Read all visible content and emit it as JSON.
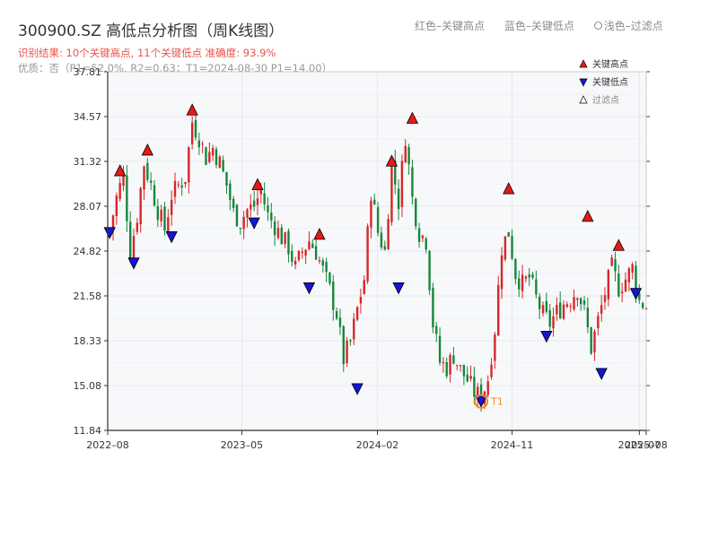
{
  "header": {
    "title": "300900.SZ 高低点分析图（周K线图）",
    "result_text": "识别结果: 10个关键高点, 11个关键低点  准确度: 93.9%",
    "quality_text": "优质：否（P1=52.0%, R2=0.63；T1=2024-08-30 P1=14.00）"
  },
  "top_legend": {
    "red": "红色–关键高点",
    "blue": "蓝色–关键低点",
    "light": "浅色–过滤点"
  },
  "colors": {
    "up": "#d62728",
    "down": "#17863a",
    "high_marker": "#e61919",
    "low_marker": "#1515d6",
    "t1_ring": "#f28a1e",
    "axis": "#333333",
    "grid": "#e5e8ee",
    "plot_bg": "#f7f8fa"
  },
  "chart_data": {
    "type": "candlestick",
    "title": "",
    "xlabel": "",
    "ylabel": "",
    "ylim": [
      11.84,
      37.81
    ],
    "y_ticks": [
      "11.84",
      "15.08",
      "18.33",
      "21.58",
      "24.82",
      "28.07",
      "31.32",
      "34.57",
      "37.81"
    ],
    "x_range": [
      "2022-08-01",
      "2025-08-01"
    ],
    "x_ticks": [
      {
        "date": "2022-08-01",
        "label": "2022–08"
      },
      {
        "date": "2023-05-01",
        "label": "2023–05"
      },
      {
        "date": "2024-02-01",
        "label": "2024–02"
      },
      {
        "date": "2024-11-01",
        "label": "2024–11"
      },
      {
        "date": "2025-07-18",
        "label": "2025–07"
      },
      {
        "date": "2025-08-01",
        "label": "2025–08"
      }
    ],
    "candle_anchors": [
      [
        "2022-08-05",
        26.3
      ],
      [
        "2022-08-19",
        28.7
      ],
      [
        "2022-09-02",
        30.3
      ],
      [
        "2022-09-16",
        24.7
      ],
      [
        "2022-09-30",
        27.4
      ],
      [
        "2022-10-14",
        31.2
      ],
      [
        "2022-10-28",
        29.6
      ],
      [
        "2022-11-11",
        27.8
      ],
      [
        "2022-11-25",
        26.4
      ],
      [
        "2022-12-09",
        28.9
      ],
      [
        "2023-01-06",
        30.2
      ],
      [
        "2023-01-20",
        34.2
      ],
      [
        "2023-02-03",
        33.1
      ],
      [
        "2023-02-17",
        31.6
      ],
      [
        "2023-03-03",
        32.3
      ],
      [
        "2023-03-17",
        31.2
      ],
      [
        "2023-03-31",
        29.6
      ],
      [
        "2023-04-14",
        27.6
      ],
      [
        "2023-04-28",
        27.0
      ],
      [
        "2023-05-12",
        27.8
      ],
      [
        "2023-05-26",
        28.1
      ],
      [
        "2023-06-09",
        29.2
      ],
      [
        "2023-06-23",
        27.4
      ],
      [
        "2023-07-07",
        26.7
      ],
      [
        "2023-07-21",
        25.8
      ],
      [
        "2023-08-04",
        25.1
      ],
      [
        "2023-08-18",
        23.6
      ],
      [
        "2023-09-01",
        24.8
      ],
      [
        "2023-09-15",
        25.6
      ],
      [
        "2023-09-29",
        24.8
      ],
      [
        "2023-10-13",
        23.4
      ],
      [
        "2023-10-27",
        22.0
      ],
      [
        "2023-11-10",
        20.3
      ],
      [
        "2023-11-24",
        17.0
      ],
      [
        "2023-12-08",
        18.2
      ],
      [
        "2023-12-22",
        20.6
      ],
      [
        "2024-01-05",
        22.8
      ],
      [
        "2024-01-19",
        29.2
      ],
      [
        "2024-02-02",
        26.2
      ],
      [
        "2024-02-16",
        24.8
      ],
      [
        "2024-03-01",
        31.1
      ],
      [
        "2024-03-15",
        28.4
      ],
      [
        "2024-03-29",
        33.2
      ],
      [
        "2024-04-12",
        28.6
      ],
      [
        "2024-04-26",
        26.2
      ],
      [
        "2024-05-10",
        25.6
      ],
      [
        "2024-05-24",
        19.6
      ],
      [
        "2024-06-07",
        16.8
      ],
      [
        "2024-06-21",
        16.4
      ],
      [
        "2024-07-05",
        17.3
      ],
      [
        "2024-07-19",
        16.2
      ],
      [
        "2024-08-02",
        15.5
      ],
      [
        "2024-08-16",
        14.6
      ],
      [
        "2024-08-30",
        14.2
      ],
      [
        "2024-09-13",
        15.6
      ],
      [
        "2024-09-27",
        19.2
      ],
      [
        "2024-10-11",
        25.1
      ],
      [
        "2024-10-25",
        26.2
      ],
      [
        "2024-11-08",
        23.2
      ],
      [
        "2024-11-22",
        22.4
      ],
      [
        "2024-12-06",
        22.9
      ],
      [
        "2024-12-20",
        21.4
      ],
      [
        "2025-01-03",
        20.2
      ],
      [
        "2025-01-17",
        19.6
      ],
      [
        "2025-01-31",
        20.4
      ],
      [
        "2025-02-14",
        21.0
      ],
      [
        "2025-02-28",
        21.4
      ],
      [
        "2025-03-14",
        22.1
      ],
      [
        "2025-03-28",
        20.4
      ],
      [
        "2025-04-11",
        17.8
      ],
      [
        "2025-04-25",
        19.8
      ],
      [
        "2025-05-09",
        21.8
      ],
      [
        "2025-05-23",
        23.6
      ],
      [
        "2025-06-06",
        22.2
      ],
      [
        "2025-06-20",
        22.8
      ],
      [
        "2025-07-04",
        23.6
      ],
      [
        "2025-07-18",
        21.2
      ],
      [
        "2025-08-01",
        20.9
      ]
    ],
    "key_highs": [
      {
        "date": "2022-08-26",
        "value": 30.6
      },
      {
        "date": "2022-10-21",
        "value": 32.1
      },
      {
        "date": "2023-01-20",
        "value": 35.0
      },
      {
        "date": "2023-06-02",
        "value": 29.6
      },
      {
        "date": "2023-10-06",
        "value": 26.0
      },
      {
        "date": "2024-03-01",
        "value": 31.3
      },
      {
        "date": "2024-04-12",
        "value": 34.4
      },
      {
        "date": "2024-10-25",
        "value": 29.3
      },
      {
        "date": "2025-04-04",
        "value": 27.3
      },
      {
        "date": "2025-06-06",
        "value": 25.2
      }
    ],
    "key_lows": [
      {
        "date": "2022-08-05",
        "value": 26.2
      },
      {
        "date": "2022-09-23",
        "value": 24.0
      },
      {
        "date": "2022-12-09",
        "value": 25.9
      },
      {
        "date": "2023-05-26",
        "value": 26.9
      },
      {
        "date": "2023-09-15",
        "value": 22.2
      },
      {
        "date": "2023-12-22",
        "value": 14.9
      },
      {
        "date": "2024-03-15",
        "value": 22.2
      },
      {
        "date": "2024-08-30",
        "value": 14.0
      },
      {
        "date": "2025-01-10",
        "value": 18.7
      },
      {
        "date": "2025-05-02",
        "value": 16.0
      },
      {
        "date": "2025-07-11",
        "value": 21.8
      }
    ],
    "t1": {
      "date": "2024-08-30",
      "value": 14.0,
      "label": "T1"
    },
    "legend": {
      "high": "关键高点",
      "low": "关键低点",
      "filtered": "过滤点",
      "placement": "top-right"
    }
  }
}
